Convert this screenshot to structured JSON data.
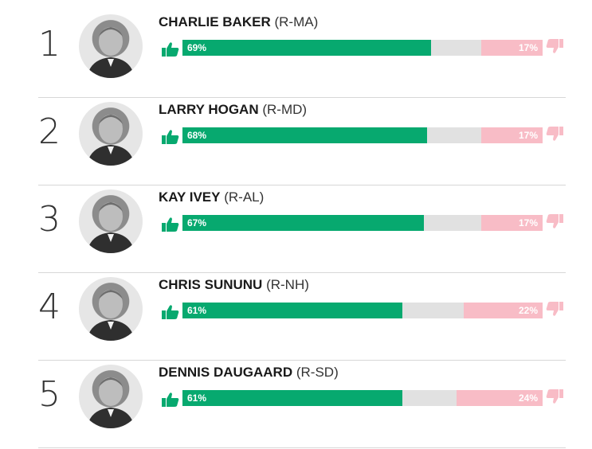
{
  "colors": {
    "approve": "#07a96f",
    "neutral": "#e1e1e1",
    "disapprove": "#f8bcc6",
    "thumb_up": "#07a96f",
    "thumb_down": "#f8bcc6"
  },
  "chart_data": {
    "type": "bar",
    "categories": [
      "CHARLIE BAKER",
      "LARRY HOGAN",
      "KAY IVEY",
      "CHRIS SUNUNU",
      "DENNIS DAUGAARD"
    ],
    "series": [
      {
        "values": [
          69,
          68,
          67,
          61,
          61
        ]
      },
      {
        "values": [
          17,
          17,
          17,
          22,
          24
        ]
      }
    ],
    "ylim": [
      0,
      100
    ],
    "stacked": true,
    "orientation": "horizontal",
    "rows": [
      {
        "rank": "1",
        "name": "CHARLIE BAKER",
        "party": "(R-MA)",
        "approve": 69,
        "disapprove": 17,
        "approve_label": "69%",
        "disapprove_label": "17%",
        "avatar_icon": "person-photo"
      },
      {
        "rank": "2",
        "name": "LARRY HOGAN",
        "party": "(R-MD)",
        "approve": 68,
        "disapprove": 17,
        "approve_label": "68%",
        "disapprove_label": "17%",
        "avatar_icon": "person-photo"
      },
      {
        "rank": "3",
        "name": "KAY IVEY",
        "party": "(R-AL)",
        "approve": 67,
        "disapprove": 17,
        "approve_label": "67%",
        "disapprove_label": "17%",
        "avatar_icon": "person-photo"
      },
      {
        "rank": "4",
        "name": "CHRIS SUNUNU",
        "party": "(R-NH)",
        "approve": 61,
        "disapprove": 22,
        "approve_label": "61%",
        "disapprove_label": "22%",
        "avatar_icon": "person-photo"
      },
      {
        "rank": "5",
        "name": "DENNIS DAUGAARD",
        "party": "(R-SD)",
        "approve": 61,
        "disapprove": 24,
        "approve_label": "61%",
        "disapprove_label": "24%",
        "avatar_icon": "person-photo"
      }
    ]
  },
  "icons": {
    "approve": "thumbs-up-icon",
    "disapprove": "thumbs-down-icon"
  }
}
